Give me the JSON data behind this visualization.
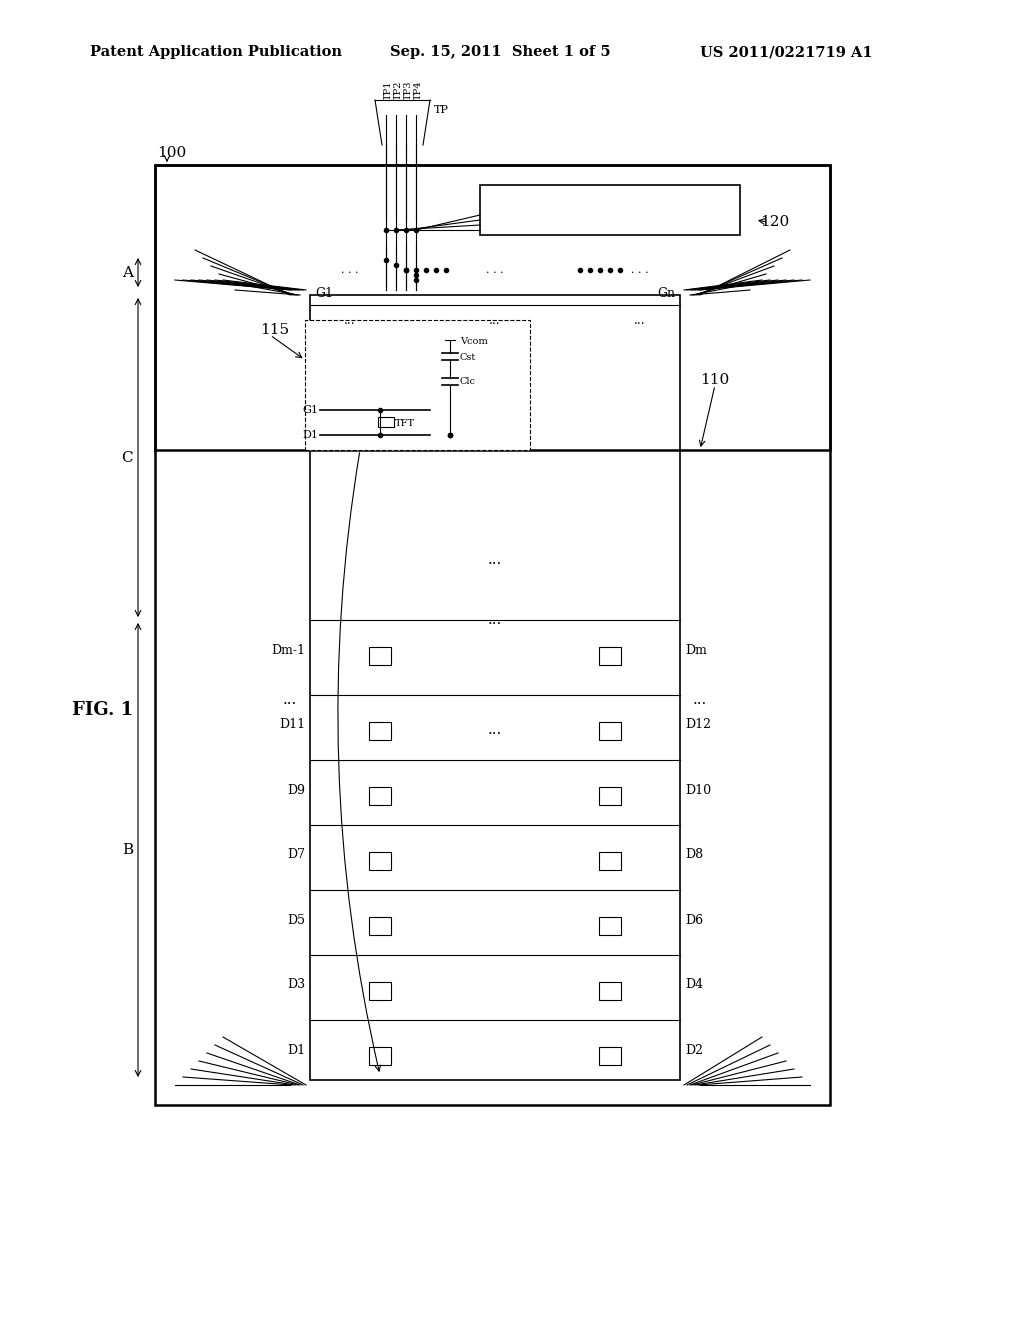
{
  "bg_color": "#ffffff",
  "line_color": "#000000",
  "header_text": "Patent Application Publication",
  "header_date": "Sep. 15, 2011  Sheet 1 of 5",
  "header_patent": "US 2011/0221719 A1",
  "fig_label": "FIG. 1",
  "label_100": "100",
  "label_110": "110",
  "label_115": "115",
  "label_120": "120",
  "label_A": "A",
  "label_B": "B",
  "label_C": "C"
}
